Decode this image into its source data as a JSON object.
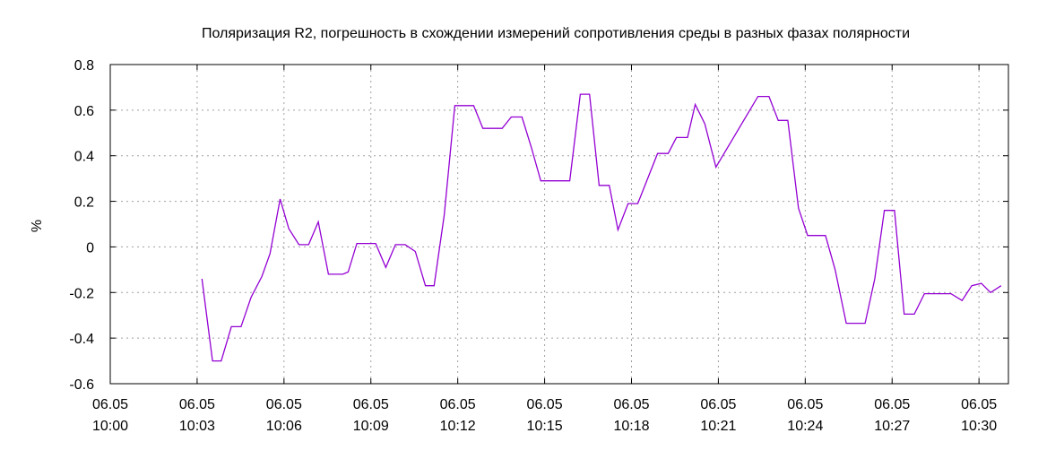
{
  "chart_data": {
    "type": "line",
    "title": "Поляризация R2, погрешность в схождении измерений сопротивления среды в разных фазах полярности",
    "xlabel": "",
    "ylabel": "%",
    "xlim": [
      "10:00:00",
      "10:31:01"
    ],
    "ylim": [
      -0.6,
      0.8
    ],
    "grid": true,
    "x_ticks": [
      {
        "date": "06.05",
        "time": "10:00",
        "at": "10:00:00"
      },
      {
        "date": "06.05",
        "time": "10:03",
        "at": "10:03:00"
      },
      {
        "date": "06.05",
        "time": "10:06",
        "at": "10:06:00"
      },
      {
        "date": "06.05",
        "time": "10:09",
        "at": "10:09:00"
      },
      {
        "date": "06.05",
        "time": "10:12",
        "at": "10:12:00"
      },
      {
        "date": "06.05",
        "time": "10:15",
        "at": "10:15:00"
      },
      {
        "date": "06.05",
        "time": "10:18",
        "at": "10:18:00"
      },
      {
        "date": "06.05",
        "time": "10:21",
        "at": "10:21:00"
      },
      {
        "date": "06.05",
        "time": "10:24",
        "at": "10:24:00"
      },
      {
        "date": "06.05",
        "time": "10:27",
        "at": "10:27:00"
      },
      {
        "date": "06.05",
        "time": "10:30",
        "at": "10:30:00"
      }
    ],
    "y_ticks": [
      "0.8",
      "0.6",
      "0.4",
      "0.2",
      "0",
      "-0.2",
      "-0.4",
      "-0.6"
    ],
    "line_color": "#9400d3",
    "series": [
      {
        "x": [
          "10:03:10",
          "10:03:32",
          "10:03:50",
          "10:04:11",
          "10:04:31",
          "10:04:52",
          "10:05:14",
          "10:05:31",
          "10:05:52",
          "10:06:10",
          "10:06:31",
          "10:06:51",
          "10:07:11",
          "10:07:32",
          "10:08:02",
          "10:08:13",
          "10:08:31",
          "10:09:10",
          "10:09:31",
          "10:09:51",
          "10:10:11",
          "10:10:32",
          "10:10:53",
          "10:11:11",
          "10:11:32",
          "10:11:54",
          "10:12:33",
          "10:12:52",
          "10:13:32",
          "10:13:51",
          "10:14:13",
          "10:14:32",
          "10:14:52",
          "10:15:52",
          "10:16:14",
          "10:16:33",
          "10:16:53",
          "10:17:14",
          "10:17:32",
          "10:17:53",
          "10:18:13",
          "10:18:54",
          "10:19:16",
          "10:19:33",
          "10:19:56",
          "10:20:12",
          "10:20:32",
          "10:20:55",
          "10:22:22",
          "10:22:45",
          "10:23:04",
          "10:23:24",
          "10:23:46",
          "10:24:05",
          "10:24:42",
          "10:25:02",
          "10:25:25",
          "10:26:04",
          "10:26:24",
          "10:26:44",
          "10:27:05",
          "10:27:25",
          "10:27:46",
          "10:28:07",
          "10:29:02",
          "10:29:25",
          "10:29:45",
          "10:30:05",
          "10:30:24",
          "10:30:46"
        ],
        "y": [
          -0.14,
          -0.5,
          -0.5,
          -0.35,
          -0.35,
          -0.22,
          -0.13,
          -0.03,
          0.21,
          0.08,
          0.01,
          0.01,
          0.11,
          -0.12,
          -0.12,
          -0.11,
          0.015,
          0.015,
          -0.09,
          0.01,
          0.01,
          -0.02,
          -0.17,
          -0.17,
          0.14,
          0.62,
          0.62,
          0.52,
          0.52,
          0.57,
          0.57,
          0.44,
          0.29,
          0.29,
          0.67,
          0.67,
          0.27,
          0.27,
          0.075,
          0.19,
          0.19,
          0.41,
          0.41,
          0.48,
          0.48,
          0.625,
          0.54,
          0.35,
          0.66,
          0.66,
          0.555,
          0.555,
          0.17,
          0.05,
          0.05,
          -0.1,
          -0.335,
          -0.335,
          -0.14,
          0.16,
          0.16,
          -0.295,
          -0.295,
          -0.205,
          -0.205,
          -0.235,
          -0.17,
          -0.16,
          -0.2,
          -0.17
        ]
      }
    ]
  }
}
